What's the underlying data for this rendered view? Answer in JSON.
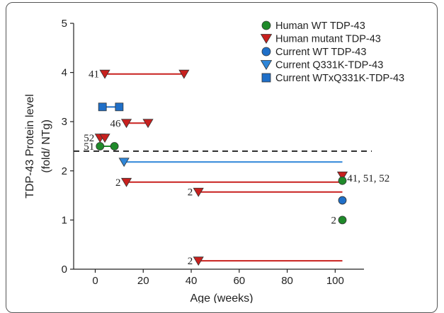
{
  "chart_data": {
    "type": "scatter",
    "xlabel": "Age (weeks)",
    "ylabel_line1": "TDP-43 Protein level",
    "ylabel_line2": "(fold/ NTg)",
    "xlim": [
      -9,
      112
    ],
    "ylim": [
      0,
      5
    ],
    "xticks": [
      "0",
      "20",
      "40",
      "60",
      "80",
      "100"
    ],
    "xtick_values": [
      0,
      20,
      40,
      60,
      80,
      100
    ],
    "yticks": [
      "0",
      "1",
      "2",
      "3",
      "4",
      "5"
    ],
    "ytick_values": [
      0,
      1,
      2,
      3,
      4,
      5
    ],
    "threshold_y": 2.4,
    "colors": {
      "human_wt": "#1f8a2a",
      "human_mutant": "#c8201e",
      "current_wt": "#1f6fc8",
      "current_q331k": "#2f86d8",
      "current_wtxq331k": "#1f6fc8"
    },
    "legend": [
      {
        "key": "human_wt",
        "marker": "circle",
        "label": "Human  WT TDP-43"
      },
      {
        "key": "human_mutant",
        "marker": "triangle-down",
        "label": "Human  mutant  TDP-43"
      },
      {
        "key": "current_wt",
        "marker": "circle",
        "label": "Current WT TDP-43"
      },
      {
        "key": "current_q331k",
        "marker": "triangle-down",
        "label": "Current Q331K-TDP-43"
      },
      {
        "key": "current_wtxq331k",
        "marker": "square",
        "label": "Current WTxQ331K-TDP-43"
      }
    ],
    "ranges": [
      {
        "key": "human_mutant",
        "marker": "triangle-down",
        "x1": 4,
        "x2": 37,
        "y": 3.97,
        "label": "41",
        "label_side": "left",
        "end_marker": true
      },
      {
        "key": "current_wtxq331k",
        "marker": "square",
        "x1": 3,
        "x2": 10,
        "y": 3.3,
        "label": "",
        "end_marker": true
      },
      {
        "key": "human_mutant",
        "marker": "triangle-down",
        "x1": 13,
        "x2": 22,
        "y": 2.97,
        "label": "46",
        "label_side": "left",
        "end_marker": true
      },
      {
        "key": "human_mutant",
        "marker": "triangle-down",
        "x1": 2,
        "x2": 4,
        "y": 2.67,
        "label": "52",
        "label_side": "left",
        "end_marker": true
      },
      {
        "key": "human_wt",
        "marker": "circle",
        "x1": 2,
        "x2": 8,
        "y": 2.5,
        "label": "51",
        "label_side": "left",
        "end_marker": true
      },
      {
        "key": "current_q331k",
        "marker": "triangle-down",
        "x1": 12,
        "x2": 103,
        "y": 2.18,
        "label": "",
        "end_marker": false
      },
      {
        "key": "human_mutant",
        "marker": "triangle-down",
        "x1": 13,
        "x2": 103,
        "y": 1.77,
        "label": "2",
        "label_side": "left",
        "end_marker": false
      },
      {
        "key": "human_mutant",
        "marker": "triangle-down",
        "x1": 43,
        "x2": 103,
        "y": 1.57,
        "label": "2",
        "label_side": "left",
        "end_marker": false
      },
      {
        "key": "human_mutant",
        "marker": "triangle-down",
        "x1": 43,
        "x2": 103,
        "y": 0.17,
        "label": "2",
        "label_side": "left",
        "end_marker": false
      }
    ],
    "points": [
      {
        "key": "human_mutant",
        "marker": "triangle-down",
        "x": 103,
        "y": 1.9
      },
      {
        "key": "human_wt",
        "marker": "circle",
        "x": 103,
        "y": 1.8
      },
      {
        "key": "current_wt",
        "marker": "circle",
        "x": 103,
        "y": 1.4
      },
      {
        "key": "human_wt",
        "marker": "circle",
        "x": 103,
        "y": 1.0
      }
    ],
    "annotations": [
      {
        "text": "41, 51, 52",
        "x": 105,
        "y": 1.85,
        "anchor": "start"
      },
      {
        "text": "2",
        "x": 100.5,
        "y": 1.0,
        "anchor": "end"
      }
    ]
  }
}
